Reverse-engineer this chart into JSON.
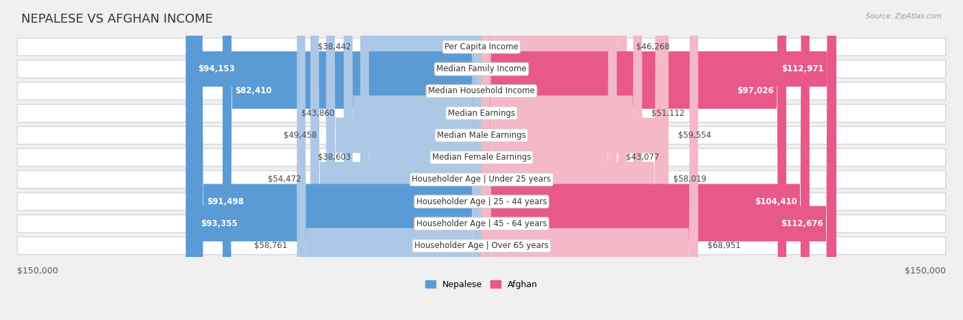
{
  "title": "NEPALESE VS AFGHAN INCOME",
  "source": "Source: ZipAtlas.com",
  "categories": [
    "Per Capita Income",
    "Median Family Income",
    "Median Household Income",
    "Median Earnings",
    "Median Male Earnings",
    "Median Female Earnings",
    "Householder Age | Under 25 years",
    "Householder Age | 25 - 44 years",
    "Householder Age | 45 - 64 years",
    "Householder Age | Over 65 years"
  ],
  "nepalese": [
    38442,
    94153,
    82410,
    43860,
    49458,
    38603,
    54472,
    91498,
    93355,
    58761
  ],
  "afghan": [
    46268,
    112971,
    97026,
    51112,
    59554,
    43077,
    58019,
    104410,
    112676,
    68951
  ],
  "nepalese_labels": [
    "$38,442",
    "$94,153",
    "$82,410",
    "$43,860",
    "$49,458",
    "$38,603",
    "$54,472",
    "$91,498",
    "$93,355",
    "$58,761"
  ],
  "afghan_labels": [
    "$46,268",
    "$112,971",
    "$97,026",
    "$51,112",
    "$59,554",
    "$43,077",
    "$58,019",
    "$104,410",
    "$112,676",
    "$68,951"
  ],
  "nepalese_color_light": "#adc8e6",
  "nepalese_color_dark": "#5b9bd5",
  "afghan_color_light": "#f4b8c8",
  "afghan_color_dark": "#e8588a",
  "color_threshold": 75000,
  "max_val": 150000,
  "background_color": "#f0f0f0",
  "legend_nepalese": "Nepalese",
  "legend_afghan": "Afghan",
  "title_fontsize": 13,
  "label_fontsize": 8.5,
  "category_fontsize": 8.5
}
